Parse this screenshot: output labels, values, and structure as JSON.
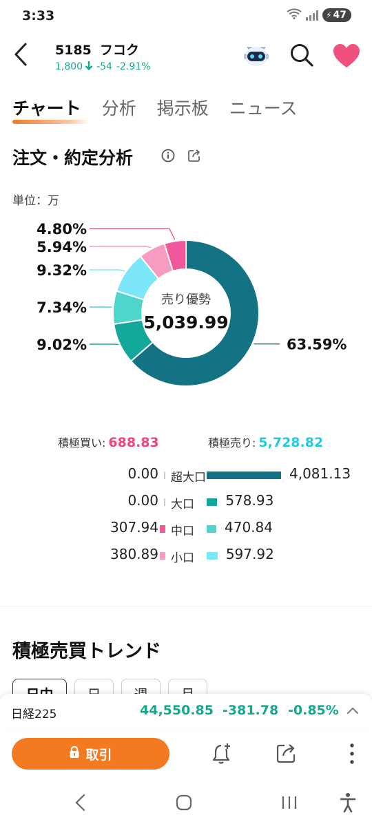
{
  "status_bar": {
    "time": "3:33",
    "battery": "47"
  },
  "header": {
    "code": "5185",
    "name": "フコク",
    "price": "1,800",
    "change": "-54",
    "change_pct": "-2.91%",
    "colors": {
      "down": "#14a88f"
    }
  },
  "tabs": [
    {
      "label": "チャート",
      "active": true
    },
    {
      "label": "分析",
      "active": false
    },
    {
      "label": "掲示板",
      "active": false
    },
    {
      "label": "ニュース",
      "active": false
    }
  ],
  "section": {
    "title": "注文・約定分析",
    "unit": "単位：万"
  },
  "chart_data": {
    "type": "pie",
    "center_label": "売り優勢",
    "center_value": "5,039.99",
    "slices": [
      {
        "label": "超大口売り",
        "value": 63.59,
        "label_text": "63.59%",
        "color": "#137384"
      },
      {
        "label": "大口売り",
        "value": 9.02,
        "label_text": "9.02%",
        "color": "#14a89a"
      },
      {
        "label": "中口売り",
        "value": 7.34,
        "label_text": "7.34%",
        "color": "#4fd6cc"
      },
      {
        "label": "小口売り",
        "value": 9.32,
        "label_text": "9.32%",
        "color": "#7de7fa"
      },
      {
        "label": "小口買い",
        "value": 5.94,
        "label_text": "5.94%",
        "color": "#f79cc0"
      },
      {
        "label": "中口買い",
        "value": 4.8,
        "label_text": "4.80%",
        "color": "#f0589a"
      }
    ]
  },
  "totals": {
    "buy_label": "積極買い:",
    "buy_value": "688.83",
    "sell_label": "積極売り:",
    "sell_value": "5,728.82"
  },
  "breakdown": [
    {
      "size": "超大口",
      "buy": "0.00",
      "buy_amount": 0,
      "sell": "4,081.13",
      "sell_amount": 4081.13,
      "sell_color": "#137384",
      "buy_color": "#f0589a"
    },
    {
      "size": "大口",
      "buy": "0.00",
      "buy_amount": 0,
      "sell": "578.93",
      "sell_amount": 578.93,
      "sell_color": "#14a89a",
      "buy_color": "#f0589a"
    },
    {
      "size": "中口",
      "buy": "307.94",
      "buy_amount": 307.94,
      "sell": "470.84",
      "sell_amount": 470.84,
      "sell_color": "#4fd6cc",
      "buy_color": "#f0589a"
    },
    {
      "size": "小口",
      "buy": "380.89",
      "buy_amount": 380.89,
      "sell": "597.92",
      "sell_amount": 597.92,
      "sell_color": "#7de7fa",
      "buy_color": "#f79cc0"
    }
  ],
  "trend": {
    "title": "積極売買トレンド",
    "periods": [
      {
        "label": "日中",
        "active": true
      },
      {
        "label": "日",
        "active": false
      },
      {
        "label": "週",
        "active": false
      },
      {
        "label": "月",
        "active": false
      }
    ]
  },
  "ticker": {
    "name": "日経225",
    "price": "44,550.85",
    "change": "-381.78",
    "change_pct": "-0.85%"
  },
  "actions": {
    "trade_label": "取引"
  }
}
